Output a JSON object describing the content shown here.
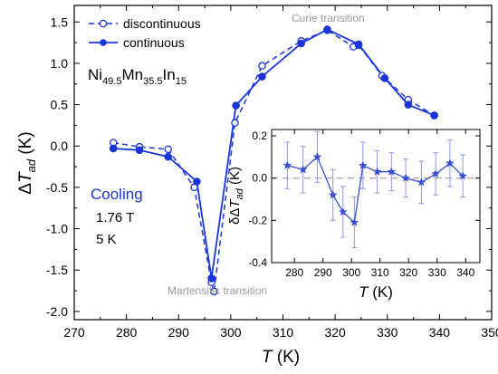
{
  "chart_data": [
    {
      "type": "line",
      "ylabel": "ΔT_ad (K)",
      "ylabel_parts": [
        "Δ",
        "T",
        "ad",
        " (K)"
      ],
      "xlabel": "T (K)",
      "xlabel_parts": [
        "T",
        " (K)"
      ],
      "xlim": [
        270,
        350
      ],
      "ylim": [
        -2.1,
        1.7
      ],
      "x_ticks": [
        270,
        280,
        290,
        300,
        310,
        320,
        330,
        340,
        350
      ],
      "x_ticklabels": [
        "270",
        "280",
        "290",
        "300",
        "310",
        "320",
        "330",
        "340",
        "350"
      ],
      "y_ticks": [
        -2.0,
        -1.5,
        -1.0,
        -0.5,
        0.0,
        0.5,
        1.0,
        1.5
      ],
      "y_ticklabels": [
        "-2.0",
        "-1.5",
        "-1.0",
        "-0.5",
        "0.0",
        "0.5",
        "1.0",
        "1.5"
      ],
      "legend_position": "top-center",
      "series": [
        {
          "name": "discontinuous",
          "style": "dashed-open-circle",
          "color": "#1a35d6",
          "x": [
            277.5,
            282.5,
            288.0,
            293.0,
            296.3,
            296.8,
            300.8,
            306.0,
            313.5,
            318.5,
            323.5,
            324.5,
            329.0,
            334.0,
            339.0
          ],
          "y": [
            0.04,
            -0.01,
            -0.04,
            -0.5,
            -1.65,
            -1.76,
            0.28,
            0.97,
            1.27,
            1.4,
            1.2,
            1.22,
            0.85,
            0.56,
            0.37
          ]
        },
        {
          "name": "continuous",
          "style": "solid-filled-circle",
          "color": "#1a35d6",
          "x": [
            277.5,
            282.5,
            288.0,
            293.5,
            296.3,
            301.0,
            306.0,
            313.5,
            318.5,
            324.5,
            329.5,
            334.0,
            339.0
          ],
          "y": [
            -0.03,
            -0.05,
            -0.13,
            -0.43,
            -1.6,
            0.49,
            0.84,
            1.24,
            1.41,
            1.23,
            0.82,
            0.5,
            0.37
          ]
        }
      ],
      "annotations": {
        "compound": [
          "Ni",
          "49.5",
          "Mn",
          "35.5",
          "In",
          "15"
        ],
        "cooling": "Cooling",
        "field": "1.76 T",
        "rate": "5 K",
        "curie": "Curie transition",
        "martensitic": "Martensitic transition"
      },
      "colors": {
        "main": "#1a35d6",
        "annotation": "#9a9a9a",
        "dash_zero": "#999999"
      }
    },
    {
      "type": "scatter",
      "position": "inset-bottom-right",
      "ylabel": "δΔT_ad (K)",
      "ylabel_parts": [
        "δΔ",
        "T",
        "ad",
        " (K)"
      ],
      "xlabel": "T (K)",
      "xlabel_parts": [
        "T",
        " (K)"
      ],
      "xlim": [
        272,
        345
      ],
      "ylim": [
        -0.4,
        0.23
      ],
      "x_ticks": [
        280,
        290,
        300,
        310,
        320,
        330,
        340
      ],
      "x_ticklabels": [
        "280",
        "290",
        "300",
        "310",
        "320",
        "330",
        "340"
      ],
      "y_ticks": [
        -0.4,
        -0.2,
        0.0,
        0.2
      ],
      "y_ticklabels": [
        "-0.4",
        "-0.2",
        "0.0",
        "0.2"
      ],
      "series": [
        {
          "marker": "star",
          "color": "#3a4fcf",
          "x": [
            277.5,
            283.0,
            288.0,
            293.5,
            297.0,
            301.0,
            304.0,
            309.0,
            314.0,
            319.0,
            324.5,
            329.5,
            334.5,
            339.0
          ],
          "y": [
            0.06,
            0.04,
            0.1,
            -0.08,
            -0.16,
            -0.21,
            0.06,
            0.03,
            0.03,
            0.0,
            -0.02,
            0.02,
            0.07,
            0.01
          ],
          "error": [
            0.11,
            0.11,
            0.12,
            0.12,
            0.12,
            0.12,
            0.11,
            0.1,
            0.09,
            0.09,
            0.1,
            0.1,
            0.11,
            0.1
          ]
        }
      ]
    }
  ]
}
